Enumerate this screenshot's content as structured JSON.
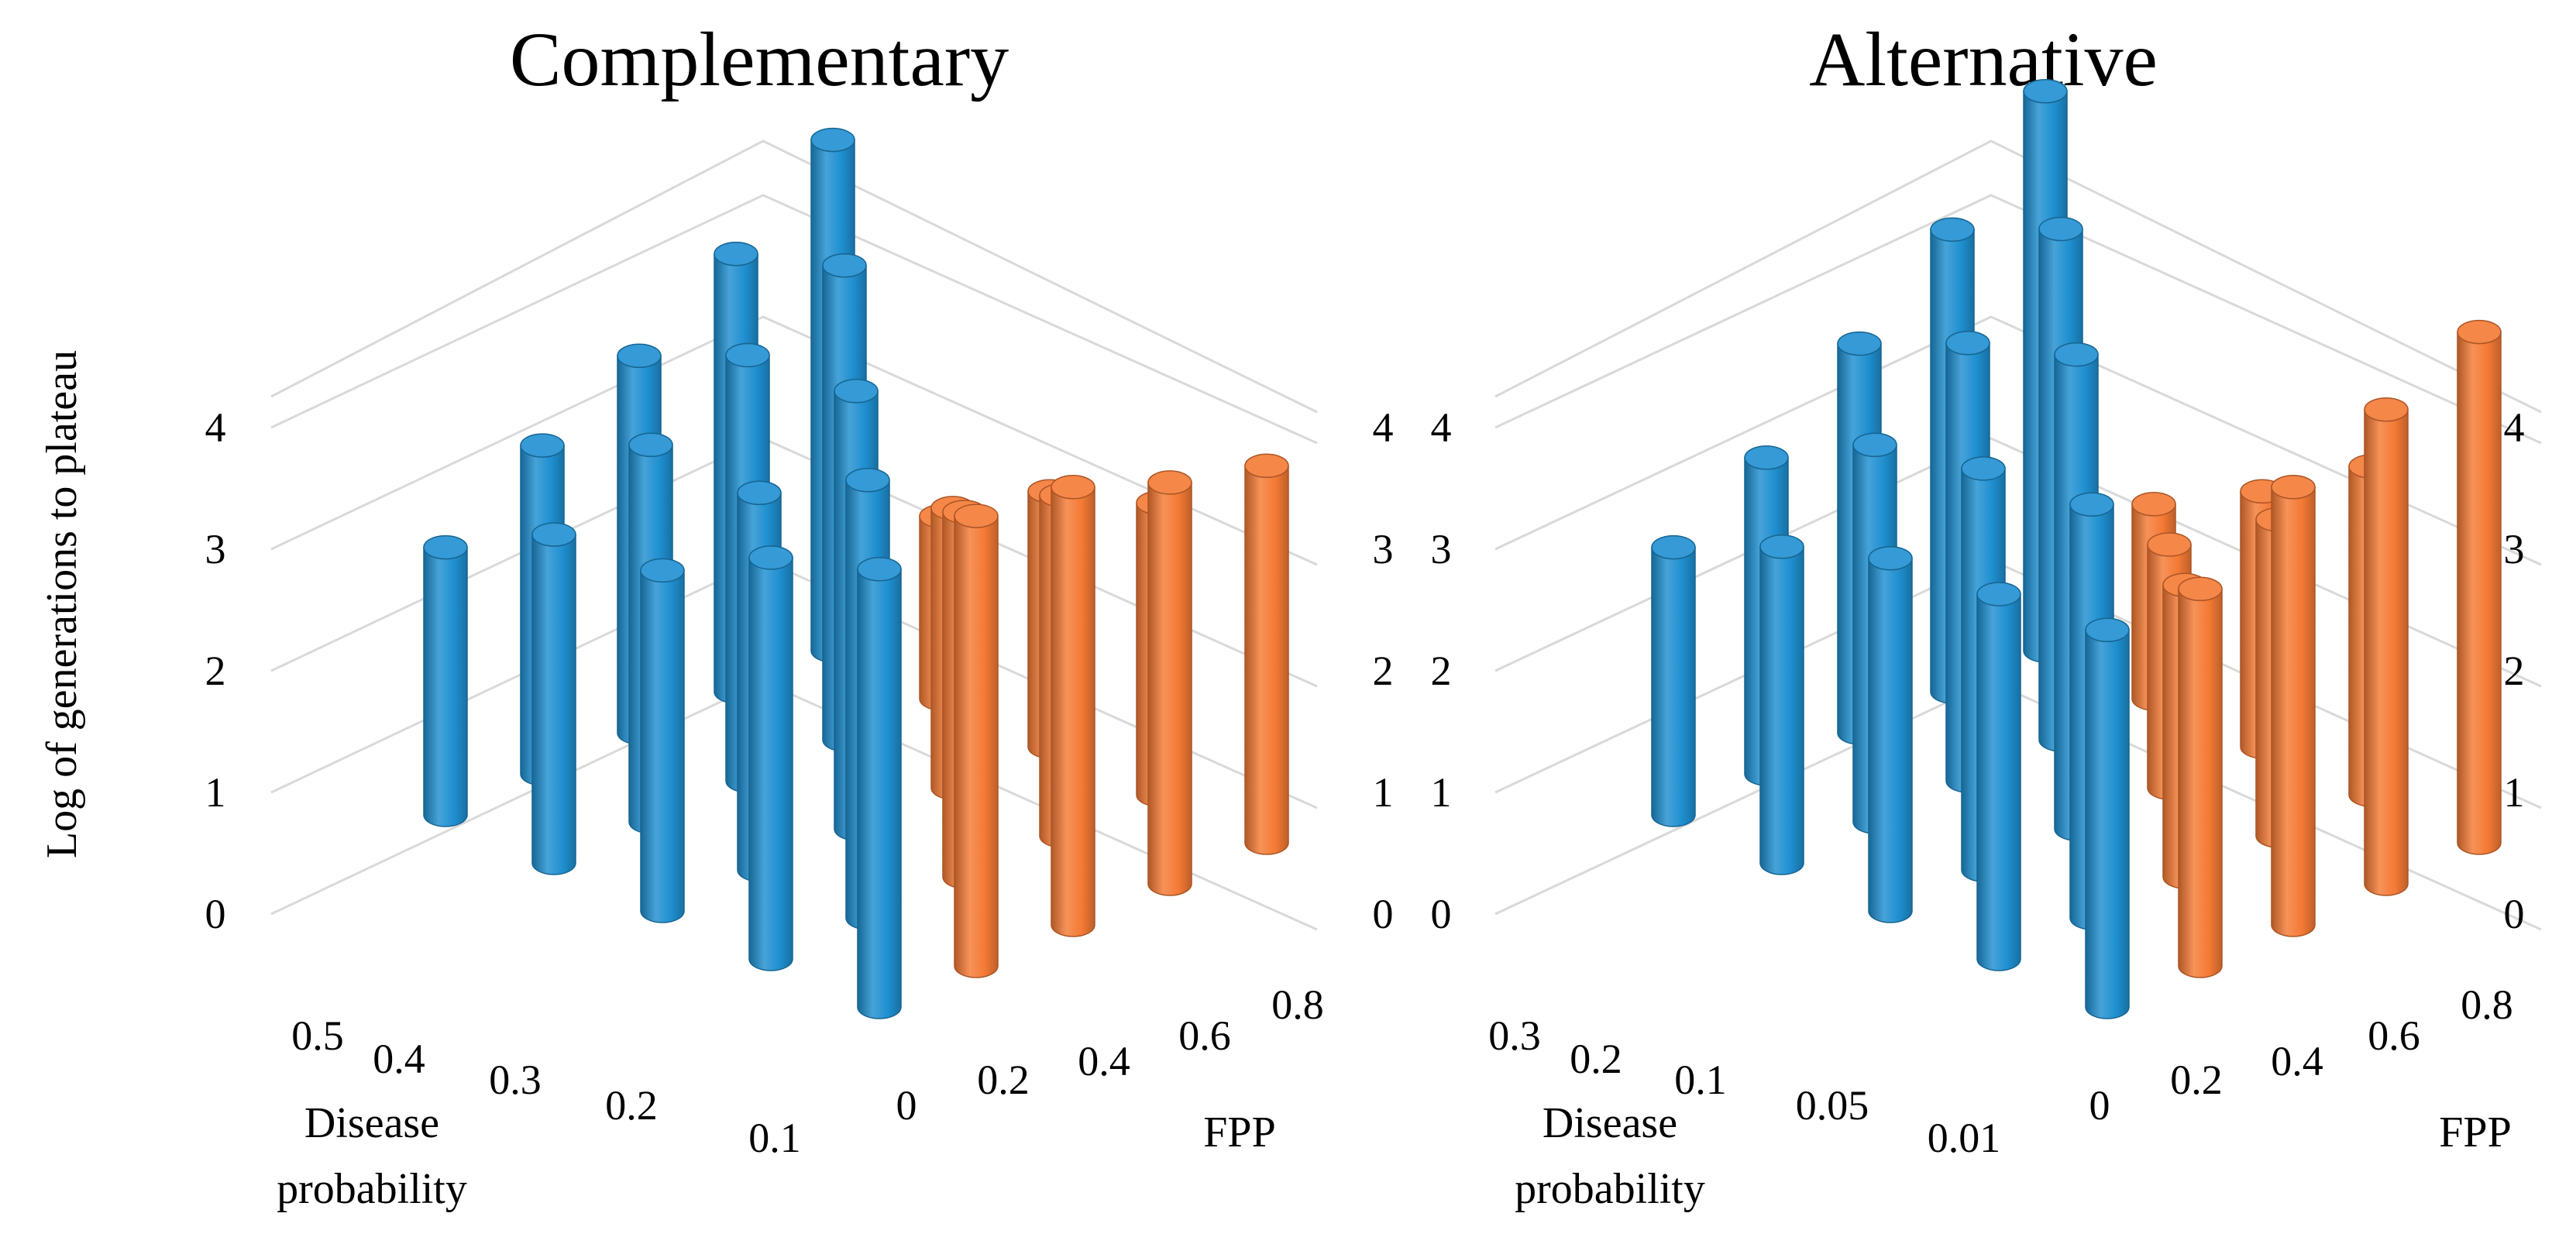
{
  "y_axis_label": "Log of generations to plateau",
  "colors": {
    "blue": "#1f8fd0",
    "orange": "#f47a35"
  },
  "chart_data": [
    {
      "type": "3d-cylinder-bar",
      "title": "Complementary",
      "ylabel": "Log of generations to plateau",
      "ylim": [
        0,
        4
      ],
      "y_ticks": [
        "0",
        "1",
        "2",
        "3",
        "4"
      ],
      "disease_axis_label": "Disease probability",
      "disease_ticks": [
        "0.5",
        "0.4",
        "0.3",
        "0.2",
        "0.1"
      ],
      "fpp_axis_label": "FPP",
      "fpp_ticks": [
        "0",
        "0.2",
        "0.4",
        "0.6",
        "0.8"
      ],
      "series": [
        {
          "name": "Disease probability",
          "color": "blue",
          "points": [
            {
              "disease": "0.5",
              "fpp": "0",
              "value": 2.2
            },
            {
              "disease": "0.5",
              "fpp": "0.2",
              "value": 2.7
            },
            {
              "disease": "0.5",
              "fpp": "0.4",
              "value": 3.1
            },
            {
              "disease": "0.5",
              "fpp": "0.6",
              "value": 3.6
            },
            {
              "disease": "0.5",
              "fpp": "0.8",
              "value": 4.2
            },
            {
              "disease": "0.4",
              "fpp": "0",
              "value": 2.7
            },
            {
              "disease": "0.4",
              "fpp": "0.2",
              "value": 3.1
            },
            {
              "disease": "0.4",
              "fpp": "0.4",
              "value": 3.5
            },
            {
              "disease": "0.4",
              "fpp": "0.6",
              "value": 3.9
            },
            {
              "disease": "0.3",
              "fpp": "0",
              "value": 2.8
            },
            {
              "disease": "0.3",
              "fpp": "0.2",
              "value": 3.1
            },
            {
              "disease": "0.3",
              "fpp": "0.4",
              "value": 3.6
            },
            {
              "disease": "0.2",
              "fpp": "0",
              "value": 3.3
            },
            {
              "disease": "0.2",
              "fpp": "0.2",
              "value": 3.6
            },
            {
              "disease": "0.1",
              "fpp": "0",
              "value": 3.6
            }
          ]
        },
        {
          "name": "FPP",
          "color": "orange",
          "points": [
            {
              "disease": "0.1",
              "fpp": "0.2",
              "value": 3.7
            },
            {
              "disease": "0.1",
              "fpp": "0.4",
              "value": 3.6
            },
            {
              "disease": "0.1",
              "fpp": "0.6",
              "value": 3.3
            },
            {
              "disease": "0.1",
              "fpp": "0.8",
              "value": 3.1
            },
            {
              "disease": "0.2",
              "fpp": "0.4",
              "value": 3.0
            },
            {
              "disease": "0.2",
              "fpp": "0.6",
              "value": 2.8
            },
            {
              "disease": "0.2",
              "fpp": "0.8",
              "value": 2.4
            },
            {
              "disease": "0.3",
              "fpp": "0.6",
              "value": 2.3
            },
            {
              "disease": "0.3",
              "fpp": "0.8",
              "value": 2.1
            },
            {
              "disease": "0.4",
              "fpp": "0.8",
              "value": 1.5
            }
          ]
        }
      ]
    },
    {
      "type": "3d-cylinder-bar",
      "title": "Alternative",
      "ylabel": "Log of generations to plateau",
      "ylim": [
        0,
        4
      ],
      "y_ticks": [
        "0",
        "1",
        "2",
        "3",
        "4"
      ],
      "disease_axis_label": "Disease probability",
      "disease_ticks": [
        "0.3",
        "0.2",
        "0.1",
        "0.05",
        "0.01"
      ],
      "fpp_axis_label": "FPP",
      "fpp_ticks": [
        "0",
        "0.2",
        "0.4",
        "0.6",
        "0.8"
      ],
      "series": [
        {
          "name": "Disease probability",
          "color": "blue",
          "points": [
            {
              "disease": "0.3",
              "fpp": "0",
              "value": 2.2
            },
            {
              "disease": "0.3",
              "fpp": "0.2",
              "value": 2.6
            },
            {
              "disease": "0.3",
              "fpp": "0.4",
              "value": 3.2
            },
            {
              "disease": "0.3",
              "fpp": "0.6",
              "value": 3.8
            },
            {
              "disease": "0.3",
              "fpp": "0.8",
              "value": 4.6
            },
            {
              "disease": "0.2",
              "fpp": "0",
              "value": 2.6
            },
            {
              "disease": "0.2",
              "fpp": "0.2",
              "value": 3.1
            },
            {
              "disease": "0.2",
              "fpp": "0.4",
              "value": 3.6
            },
            {
              "disease": "0.2",
              "fpp": "0.6",
              "value": 4.2
            },
            {
              "disease": "0.1",
              "fpp": "0",
              "value": 2.9
            },
            {
              "disease": "0.1",
              "fpp": "0.2",
              "value": 3.3
            },
            {
              "disease": "0.1",
              "fpp": "0.4",
              "value": 3.9
            },
            {
              "disease": "0.05",
              "fpp": "0",
              "value": 3.0
            },
            {
              "disease": "0.05",
              "fpp": "0.2",
              "value": 3.4
            },
            {
              "disease": "0.01",
              "fpp": "0",
              "value": 3.1
            }
          ]
        },
        {
          "name": "FPP",
          "color": "orange",
          "points": [
            {
              "disease": "0.01",
              "fpp": "0.2",
              "value": 3.1
            },
            {
              "disease": "0.01",
              "fpp": "0.4",
              "value": 3.6
            },
            {
              "disease": "0.01",
              "fpp": "0.6",
              "value": 3.9
            },
            {
              "disease": "0.01",
              "fpp": "0.8",
              "value": 4.2
            },
            {
              "disease": "0.05",
              "fpp": "0.4",
              "value": 2.4
            },
            {
              "disease": "0.05",
              "fpp": "0.6",
              "value": 2.6
            },
            {
              "disease": "0.05",
              "fpp": "0.8",
              "value": 2.7
            },
            {
              "disease": "0.1",
              "fpp": "0.6",
              "value": 2.0
            },
            {
              "disease": "0.1",
              "fpp": "0.8",
              "value": 2.1
            },
            {
              "disease": "0.2",
              "fpp": "0.8",
              "value": 1.6
            }
          ]
        }
      ]
    }
  ]
}
